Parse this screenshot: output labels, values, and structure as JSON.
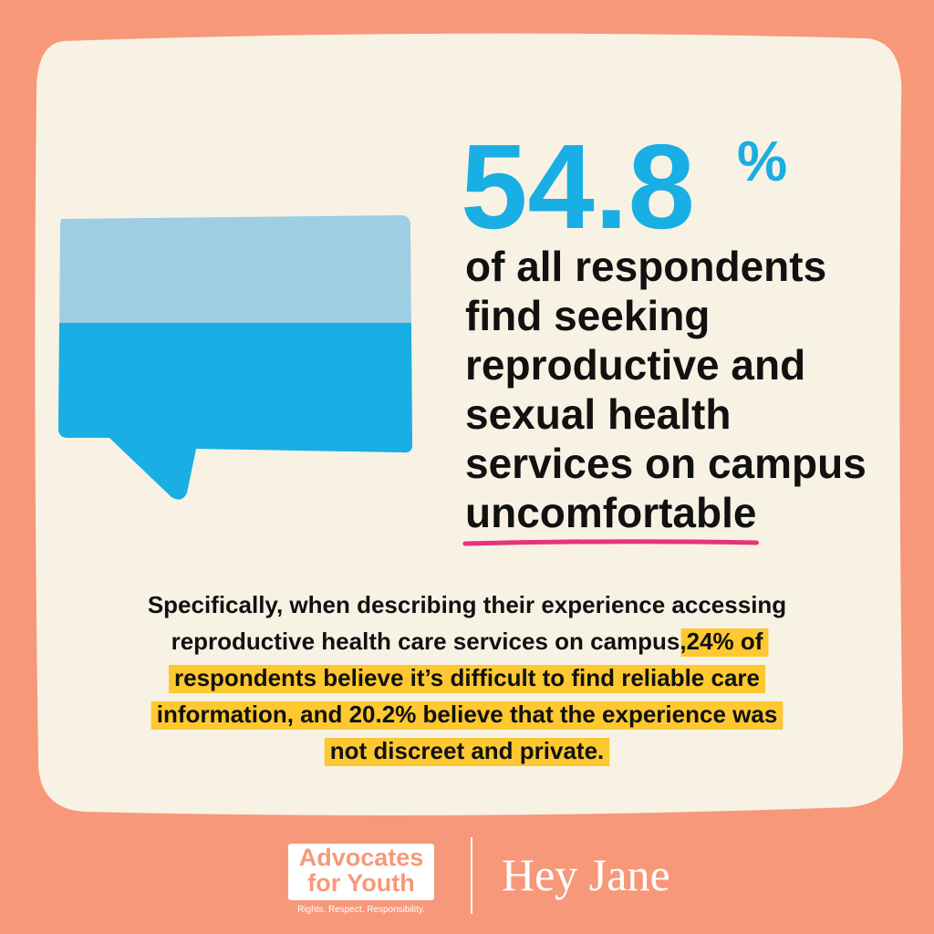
{
  "stat": {
    "value": 54.8,
    "unit": "%"
  },
  "headline": {
    "lines": [
      "of all respondents",
      "find seeking",
      "reproductive and",
      "sexual health",
      "services on campus"
    ],
    "emphasis": "uncomfortable"
  },
  "body": {
    "lines": [
      [
        {
          "text": "Specifically, when describing their experience accessing",
          "highlight": false
        }
      ],
      [
        {
          "text": "reproductive health care services on campus, ",
          "highlight": false
        },
        {
          "text": "24% of",
          "highlight": true
        }
      ],
      [
        {
          "text": "respondents believe it’s difficult to find reliable care",
          "highlight": true
        }
      ],
      [
        {
          "text": "information, and 20.2% believe that the experience was",
          "highlight": true
        }
      ],
      [
        {
          "text": "not discreet and private.",
          "highlight": true
        }
      ]
    ]
  },
  "logos": {
    "afy_line1": "Advocates",
    "afy_line2": "for Youth",
    "afy_tagline": "Rights. Respect. Responsibility.",
    "heyjane": "Hey Jane"
  }
}
